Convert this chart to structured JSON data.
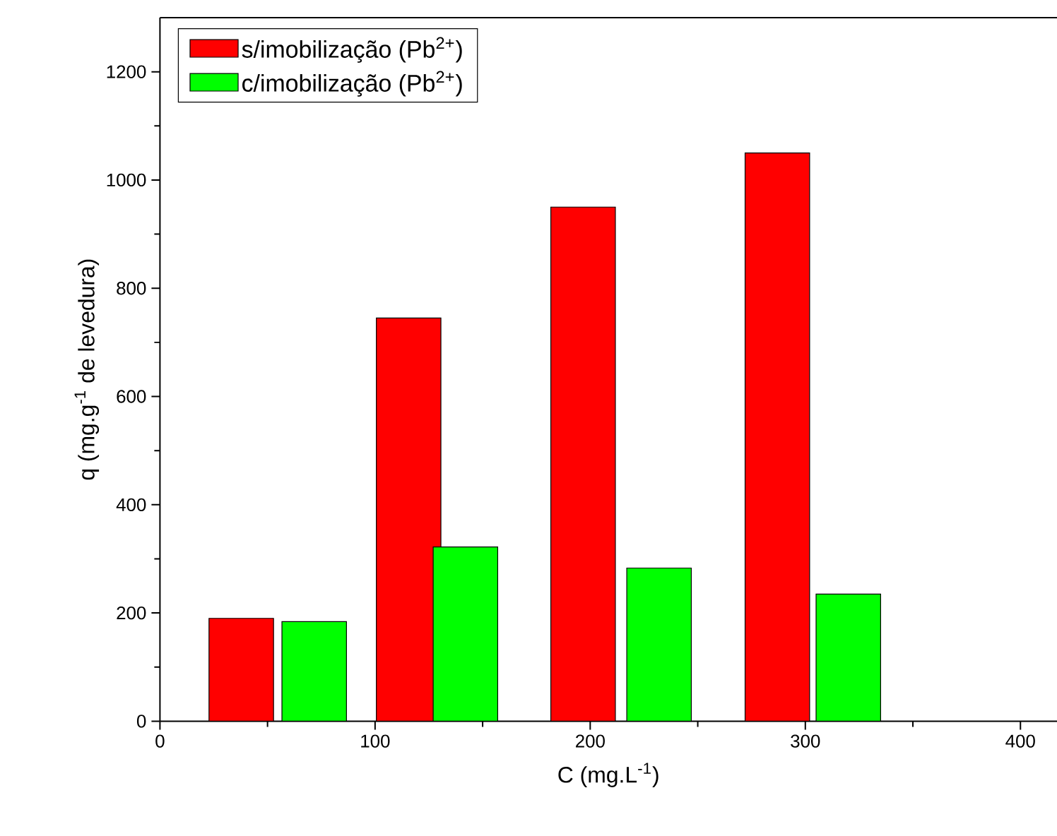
{
  "chart_data": {
    "type": "bar",
    "xlabel": "C (mg.L$^{-1}$)",
    "ylabel": "q (mg.g$^{-1}$ de levedura)",
    "series": [
      {
        "name": "s/imobilização (Pb$^{2+}$)",
        "color": "#ff0000",
        "x": [
          37.8,
          115.6,
          196.7,
          287
        ],
        "values": [
          190,
          745,
          950,
          1050
        ]
      },
      {
        "name": "c/imobilização (Pb$^{2+}$)",
        "color": "#00ff00",
        "x": [
          71.7,
          142,
          232,
          320
        ],
        "values": [
          184,
          322,
          283,
          235
        ]
      }
    ],
    "xlim": [
      0,
      417
    ],
    "ylim": [
      0,
      1300
    ],
    "xticks": [
      0,
      {
        "value": 50,
        "label": null
      },
      100,
      {
        "value": 150,
        "label": null
      },
      200,
      {
        "value": 250,
        "label": null
      },
      300,
      {
        "value": 350,
        "label": null
      },
      400
    ],
    "yticks": [
      0,
      {
        "value": 100,
        "label": null
      },
      200,
      {
        "value": 300,
        "label": null
      },
      400,
      {
        "value": 500,
        "label": null
      },
      600,
      {
        "value": 700,
        "label": null
      },
      800,
      {
        "value": 900,
        "label": null
      },
      1000,
      {
        "value": 1100,
        "label": null
      },
      1200
    ],
    "legend": "top left",
    "grid": false
  }
}
